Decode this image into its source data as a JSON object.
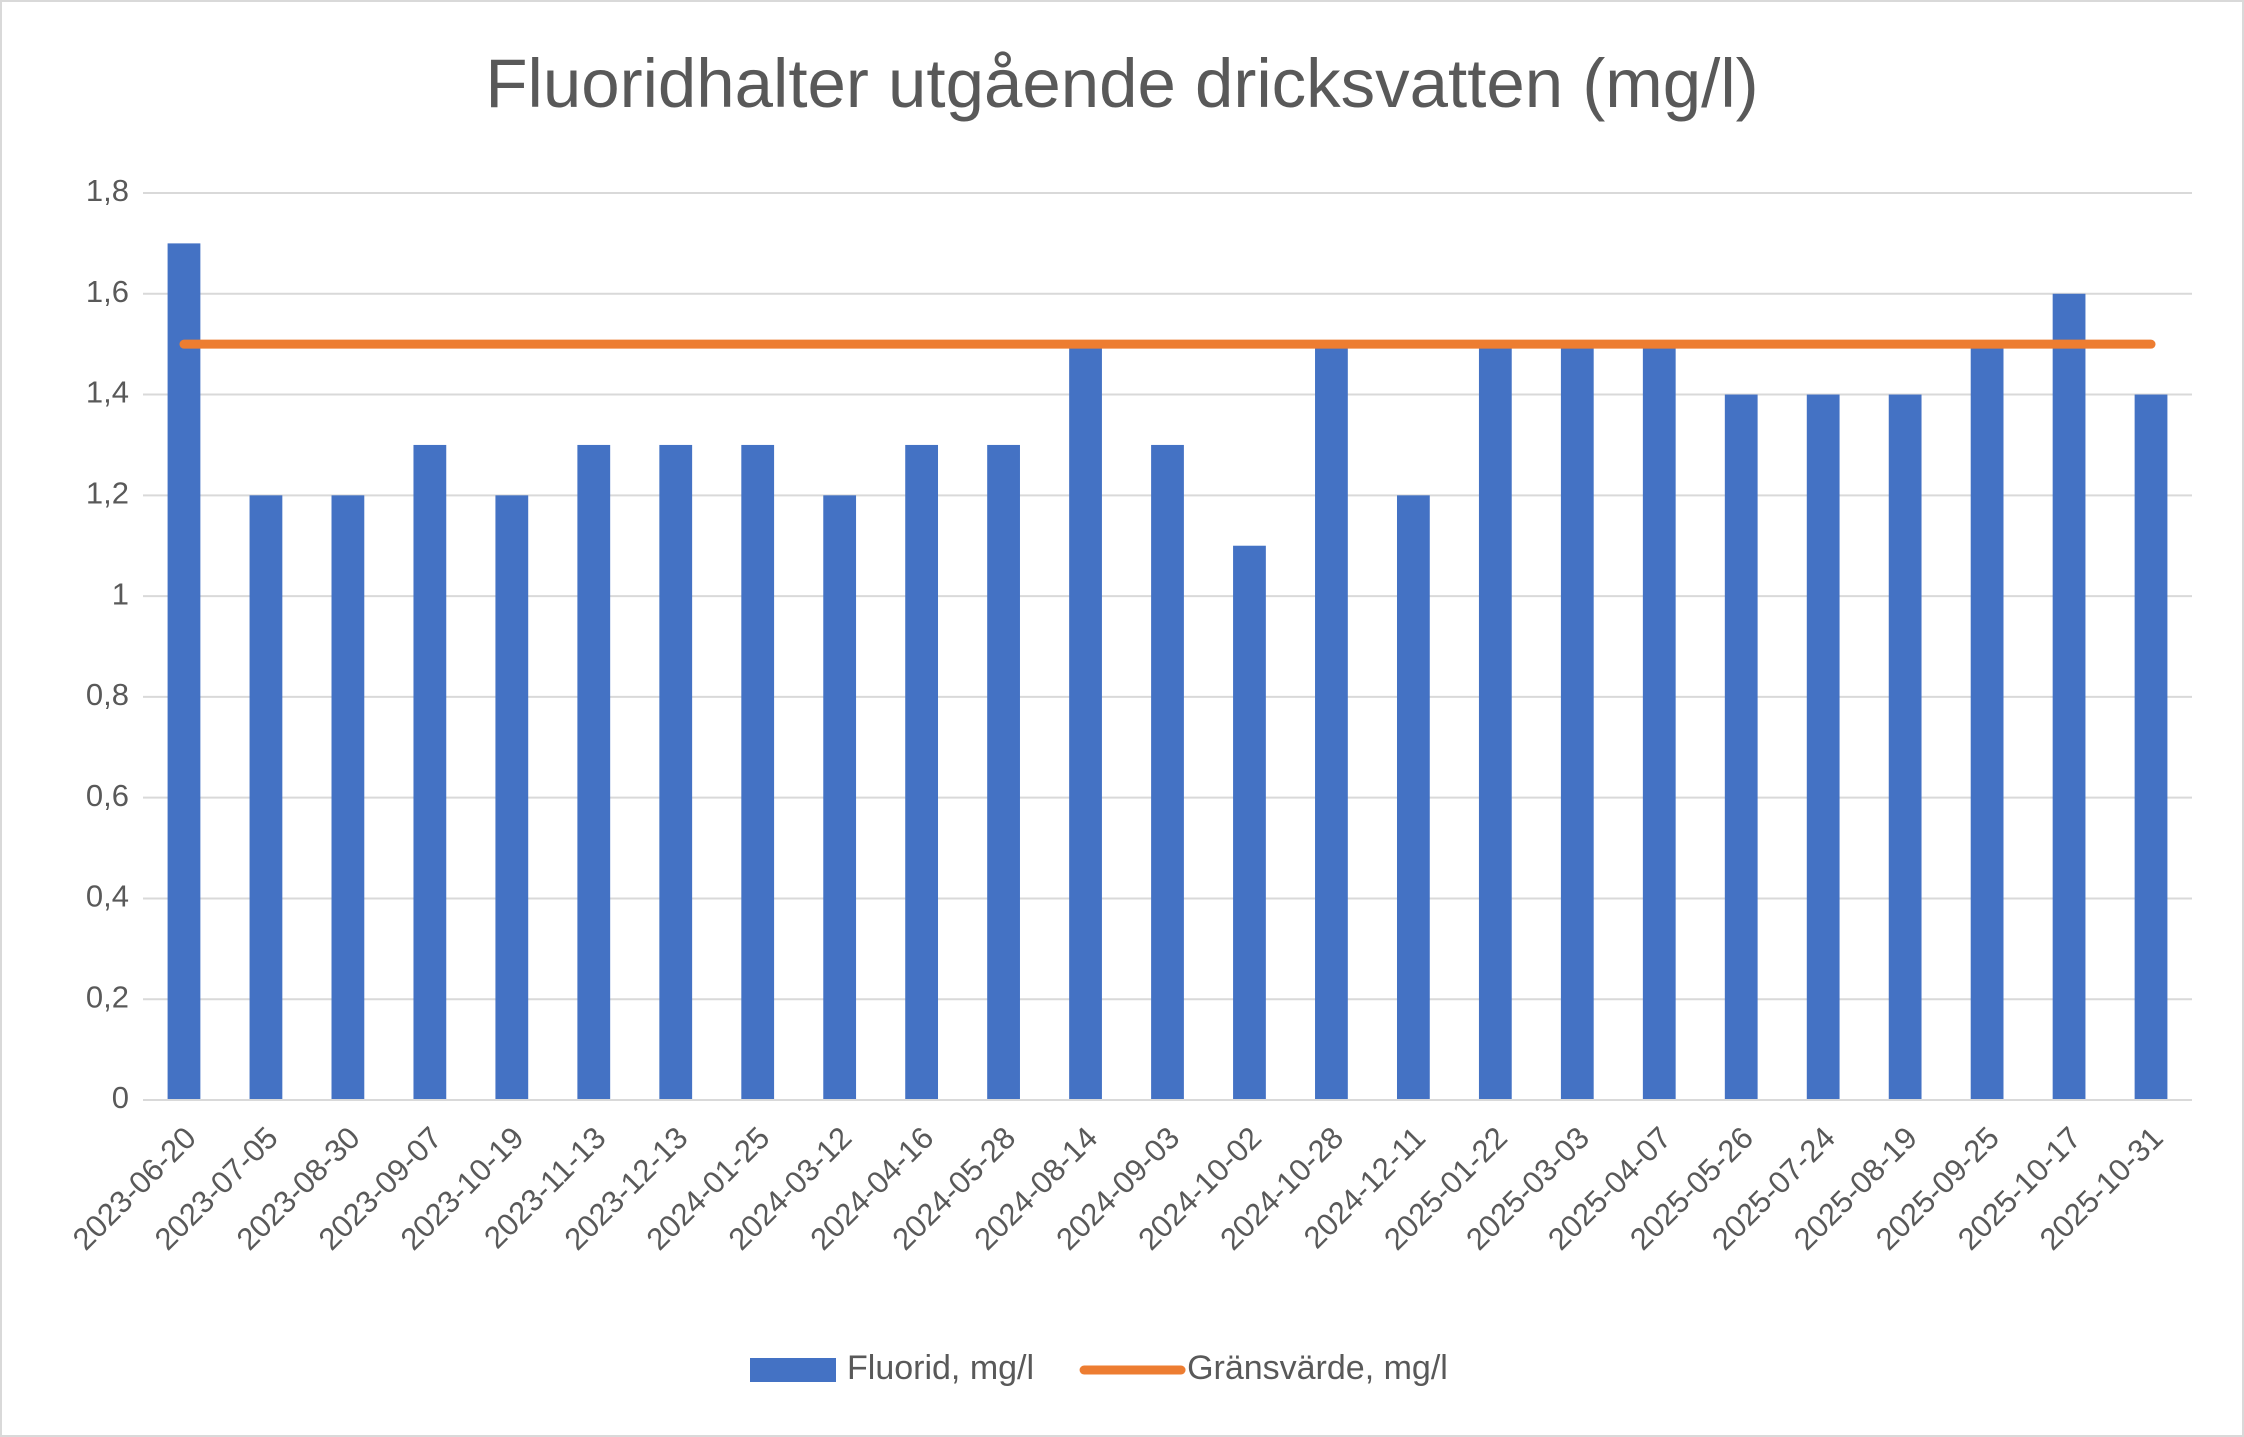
{
  "chart_data": {
    "type": "bar",
    "title": "Fluoridhalter utgående dricksvatten (mg/l)",
    "categories": [
      "2023-06-20",
      "2023-07-05",
      "2023-08-30",
      "2023-09-07",
      "2023-10-19",
      "2023-11-13",
      "2023-12-13",
      "2024-01-25",
      "2024-03-12",
      "2024-04-16",
      "2024-05-28",
      "2024-08-14",
      "2024-09-03",
      "2024-10-02",
      "2024-10-28",
      "2024-12-11",
      "2025-01-22",
      "2025-03-03",
      "2025-04-07",
      "2025-05-26",
      "2025-07-24",
      "2025-08-19",
      "2025-09-25",
      "2025-10-17",
      "2025-10-31"
    ],
    "series": [
      {
        "name": "Fluorid, mg/l",
        "type": "bar",
        "color": "#4472c4",
        "values": [
          1.7,
          1.2,
          1.2,
          1.3,
          1.2,
          1.3,
          1.3,
          1.3,
          1.2,
          1.3,
          1.3,
          1.5,
          1.3,
          1.1,
          1.5,
          1.2,
          1.5,
          1.5,
          1.5,
          1.4,
          1.4,
          1.4,
          1.5,
          1.6,
          1.4
        ]
      },
      {
        "name": "Gränsvärde, mg/l",
        "type": "line",
        "color": "#ed7d31",
        "values": [
          1.5,
          1.5,
          1.5,
          1.5,
          1.5,
          1.5,
          1.5,
          1.5,
          1.5,
          1.5,
          1.5,
          1.5,
          1.5,
          1.5,
          1.5,
          1.5,
          1.5,
          1.5,
          1.5,
          1.5,
          1.5,
          1.5,
          1.5,
          1.5,
          1.5
        ]
      }
    ],
    "ylim": [
      0,
      1.8
    ],
    "yticks": [
      0,
      {
        "value": 0.2,
        "label": "0,2"
      },
      {
        "value": 0.4,
        "label": "0,4"
      },
      {
        "value": 0.6,
        "label": "0,6"
      },
      {
        "value": 0.8,
        "label": "0,8"
      },
      1,
      {
        "value": 1.2,
        "label": "1,2"
      },
      {
        "value": 1.4,
        "label": "1,4"
      },
      {
        "value": 1.6,
        "label": "1,6"
      },
      {
        "value": 1.8,
        "label": "1,8"
      }
    ],
    "grid": true,
    "legend": "bottom"
  }
}
